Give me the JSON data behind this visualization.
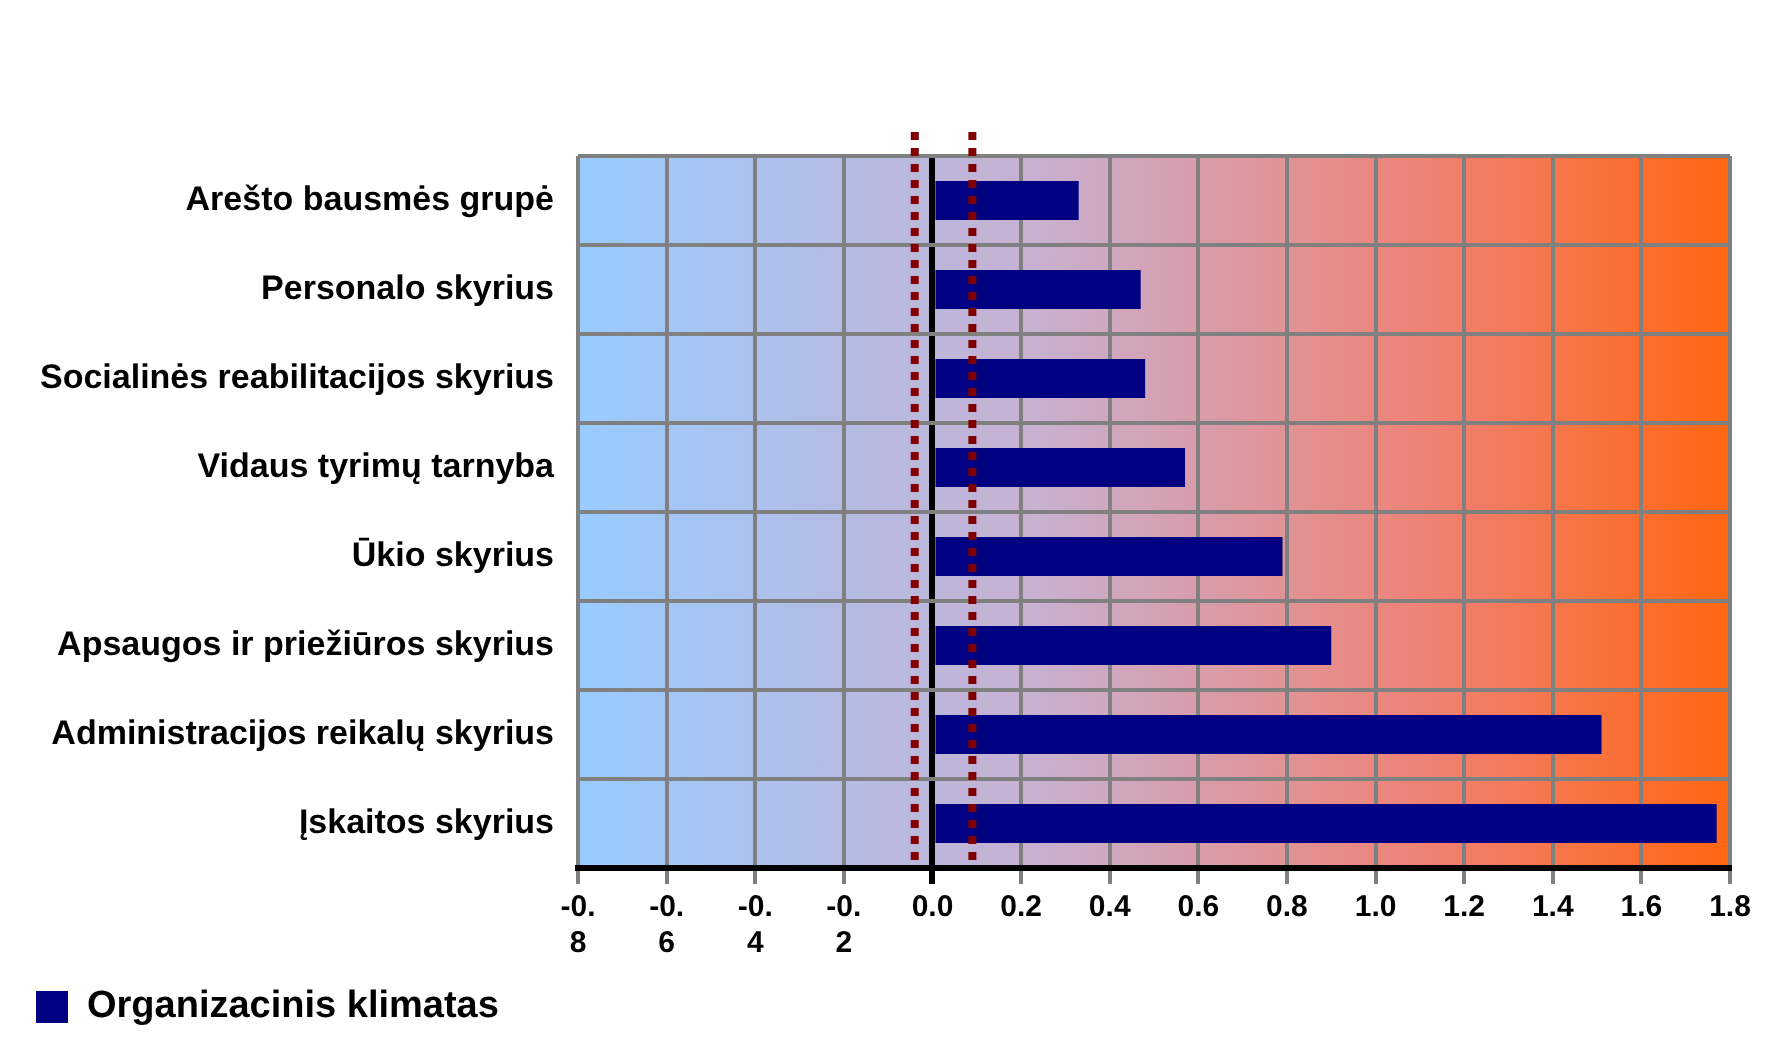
{
  "chart_data": {
    "type": "bar",
    "orientation": "horizontal",
    "categories": [
      "Arešto bausmės grupė",
      "Personalo skyrius",
      "Socialinės reabilitacijos skyrius",
      "Vidaus tyrimų tarnyba",
      "Ūkio skyrius",
      "Apsaugos ir priežiūros skyrius",
      "Administracijos reikalų skyrius",
      "Įskaitos skyrius"
    ],
    "series": [
      {
        "name": "Organizacinis klimatas",
        "color": "#000080",
        "values": [
          0.33,
          0.47,
          0.48,
          0.57,
          0.79,
          0.9,
          1.51,
          1.77
        ]
      }
    ],
    "xlim": [
      -0.8,
      1.8
    ],
    "xticks": [
      -0.8,
      -0.6,
      -0.4,
      -0.2,
      {
        "value": 0,
        "label": "0.0"
      },
      0.2,
      0.4,
      0.6,
      0.8,
      {
        "value": 1,
        "label": "1.0"
      },
      1.2,
      1.4,
      1.6,
      1.8
    ],
    "ref_lines": [
      {
        "axis": "x",
        "value": -0.04,
        "color": "#800000",
        "line_style": "dotted"
      },
      {
        "axis": "x",
        "value": 0.09,
        "color": "#800000",
        "line_style": "dotted"
      }
    ],
    "grid": true,
    "legend": "bottom left"
  }
}
